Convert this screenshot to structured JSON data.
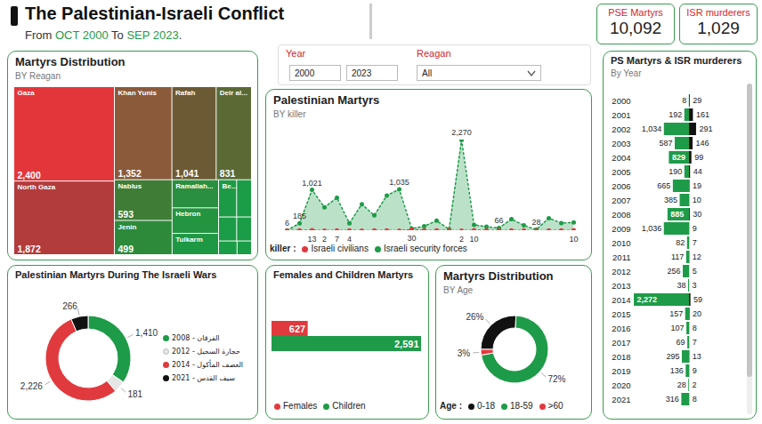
{
  "header": {
    "title": "The Palestinian-Israeli Conflict",
    "subtitle": "From OCT 2000 To SEP 2023."
  },
  "kpis": [
    {
      "label": "PSE Martyrs",
      "value": "10,092"
    },
    {
      "label": "ISR murderers",
      "value": "1,029"
    }
  ],
  "filters": {
    "year": {
      "label": "Year",
      "from": "2000",
      "to": "2023"
    },
    "region": {
      "label": "Reagan",
      "value": "All"
    }
  },
  "chart_data": [
    {
      "type": "treemap",
      "title": "Martyrs Distribution",
      "subtitle": "BY Reagan",
      "categories": [
        "Gaza",
        "North Gaza",
        "Khan Yunis",
        "Rafah",
        "Deir al...",
        "Nablus",
        "Jenin",
        "Ramallah...",
        "Hebron",
        "Tulkarm",
        "Be...",
        null,
        null,
        null,
        null,
        null
      ],
      "values": [
        2400,
        1872,
        1352,
        1041,
        831,
        593,
        499,
        330,
        300,
        250,
        170,
        140,
        110,
        90,
        64,
        50
      ],
      "value_labels": [
        "2,400",
        "1,872",
        "1,352",
        "1,041",
        "831",
        "593",
        "499",
        null,
        null,
        null,
        null,
        null,
        null,
        null,
        null,
        null
      ],
      "colors": [
        "#e2363b",
        "#b23b3b",
        "#8a5a3b",
        "#6c5a34",
        "#5b6a35",
        "#3f7d36",
        "#2c8a3a",
        "#2a8f3f",
        "#23943f",
        "#1f9843",
        "#1d9a45",
        "#1b9c46",
        "#1b9c46",
        "#1b9c46",
        "#1b9c46",
        "#1b9c46"
      ],
      "data_labels": true
    },
    {
      "type": "area",
      "title": "Palestinian Martyrs",
      "subtitle": "BY killer",
      "legend_title": "killer :",
      "legend": "bottom",
      "tick_labels": false,
      "data_labels": true,
      "categories": [
        null,
        null,
        null,
        null,
        null,
        null,
        null,
        null,
        null,
        null,
        null,
        null,
        null,
        null,
        null,
        null,
        null,
        null,
        null,
        null,
        null,
        null,
        null,
        null
      ],
      "series": [
        {
          "name": "Israeli civilians",
          "color": "#e03a3e",
          "type": "line",
          "marker": "circle",
          "line_style": "dotted",
          "values": [
            2,
            7,
            13,
            2,
            7,
            4,
            2,
            3,
            5,
            1,
            30,
            7,
            6,
            3,
            2,
            10,
            7,
            3,
            5,
            3,
            0,
            3,
            3,
            10
          ],
          "value_labels": [
            null,
            null,
            "13",
            "2",
            "7",
            "4",
            null,
            null,
            null,
            null,
            "30",
            null,
            null,
            null,
            "2",
            "10",
            null,
            null,
            null,
            null,
            null,
            null,
            null,
            "10"
          ]
        },
        {
          "name": "Israeli security forces",
          "color": "#1e9b48",
          "type": "area",
          "marker": "circle",
          "line_style": "dotted",
          "values": [
            6,
            185,
            1021,
            585,
            822,
            186,
            663,
            382,
            880,
            1035,
            52,
            110,
            250,
            35,
            2270,
            147,
            100,
            66,
            290,
            133,
            28,
            313,
            190,
            205
          ],
          "value_labels": [
            "6",
            "185",
            "1,021",
            null,
            null,
            null,
            null,
            null,
            null,
            "1,035",
            null,
            null,
            null,
            null,
            "2,270",
            null,
            null,
            "66",
            null,
            null,
            "28",
            null,
            null,
            null
          ]
        }
      ]
    },
    {
      "type": "donut",
      "title": "Palestinian Martyrs During The Israeli Wars",
      "legend": "right",
      "categories": [
        "الفرقان - 2008",
        "حجارة السجيل - 2012",
        "العصف المأكول - 2014",
        "سيف القدس - 2021"
      ],
      "values": [
        1410,
        181,
        2226,
        266
      ],
      "value_labels": [
        "1,410",
        "181",
        "2,226",
        "266"
      ],
      "colors": [
        "#1e9b48",
        "#e6e6e6",
        "#e03a3e",
        "#111111"
      ],
      "data_labels": true
    },
    {
      "type": "bar",
      "orientation": "horizontal",
      "title": "Females and Children Martyrs",
      "legend": "bottom",
      "tick_labels": false,
      "data_labels": true,
      "categories": [
        "Females",
        "Children"
      ],
      "values": [
        627,
        2591
      ],
      "value_labels": [
        "627",
        "2,591"
      ],
      "colors": [
        "#e03a3e",
        "#1e9b48"
      ]
    },
    {
      "type": "donut",
      "title": "Martyrs Distribution",
      "subtitle": "BY Age",
      "legend_title": "Age :",
      "legend": "bottom",
      "categories": [
        "0-18",
        "18-59",
        ">60"
      ],
      "values": [
        25.7,
        71.6,
        2.7
      ],
      "value_labels": [
        "26%",
        "72%",
        "3%"
      ],
      "colors": [
        "#111111",
        "#1e9b48",
        "#e03a3e"
      ],
      "data_labels": true
    },
    {
      "type": "bar",
      "orientation": "horizontal",
      "title": "PS Martyrs & ISR murderers",
      "subtitle": "By Year",
      "tick_labels": "y",
      "data_labels": true,
      "categories": [
        "2000",
        "2001",
        "2002",
        "2003",
        "2004",
        "2005",
        "2006",
        "2007",
        "2008",
        "2009",
        "2010",
        "2011",
        "2012",
        "2013",
        "2014",
        "2015",
        "2016",
        "2017",
        "2018",
        "2019",
        "2020",
        "2021"
      ],
      "series": [
        {
          "name": "PS Martyrs",
          "color": "#1e9b48",
          "values": [
            8,
            192,
            1034,
            587,
            829,
            190,
            665,
            385,
            885,
            1036,
            82,
            117,
            256,
            38,
            2272,
            157,
            107,
            69,
            295,
            136,
            28,
            316
          ],
          "value_labels": [
            "8",
            "192",
            "1,034",
            "587",
            "829",
            "190",
            "665",
            "385",
            "885",
            "1,036",
            "82",
            "117",
            "256",
            "38",
            "2,272",
            "157",
            "107",
            "69",
            "295",
            "136",
            "28",
            "316"
          ]
        },
        {
          "name": "ISR murderers",
          "color": "#111111",
          "values": [
            29,
            161,
            291,
            146,
            99,
            44,
            19,
            10,
            30,
            9,
            7,
            12,
            5,
            3,
            59,
            20,
            8,
            7,
            13,
            9,
            2,
            8
          ]
        }
      ]
    }
  ]
}
